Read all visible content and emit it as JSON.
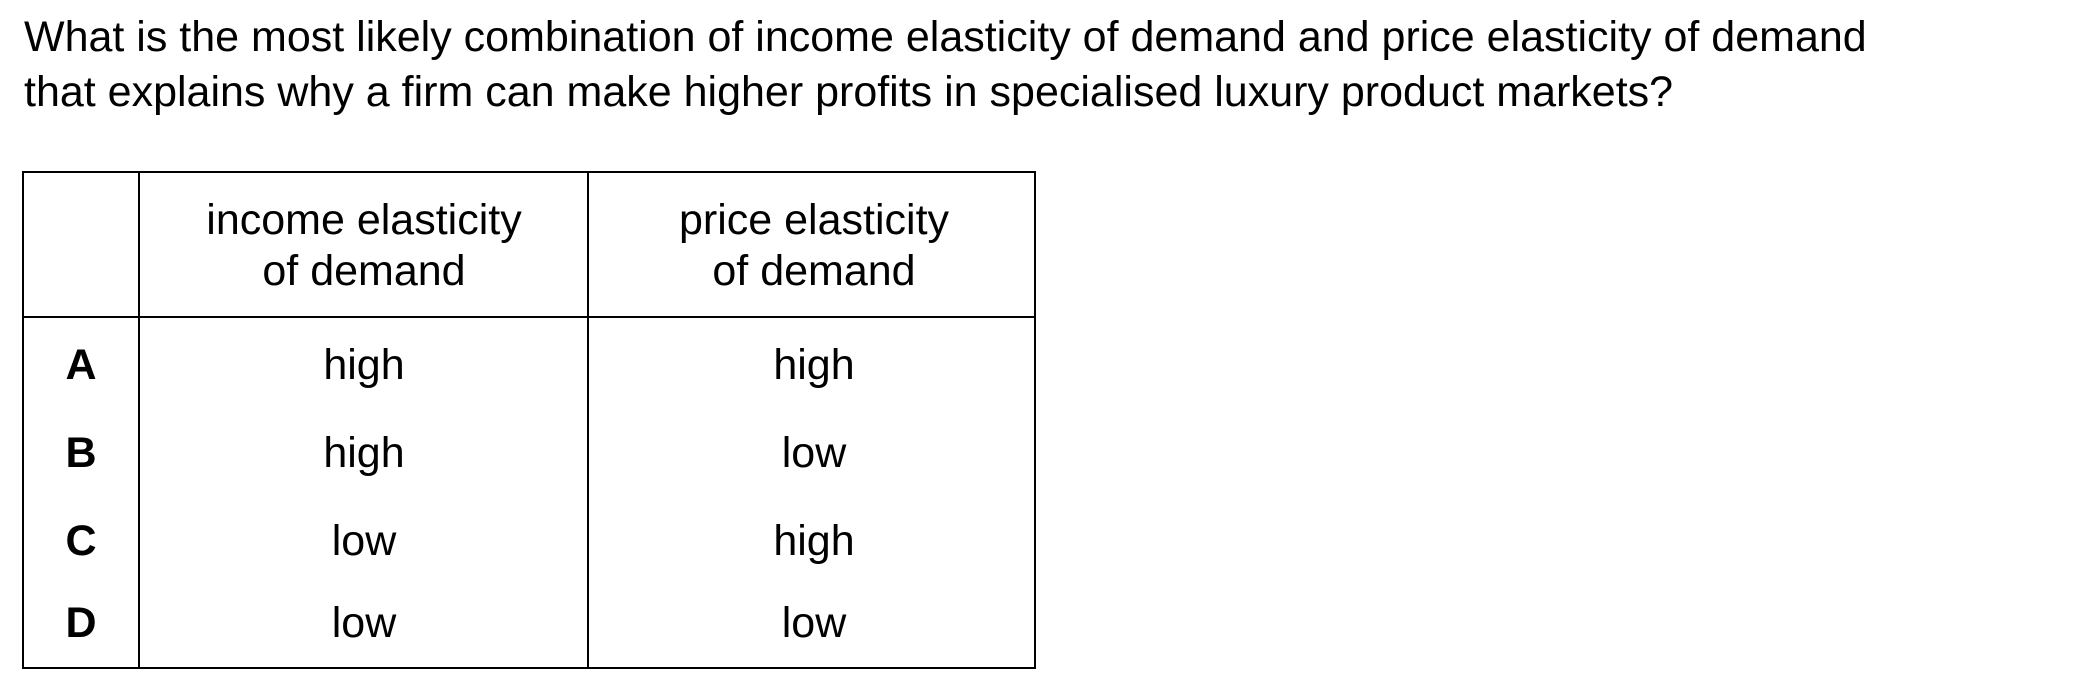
{
  "question": {
    "line1": "What is the most likely combination of income elasticity of demand and price elasticity of demand",
    "line2": "that explains why a firm can make higher profits in specialised luxury product markets?"
  },
  "table": {
    "headers": {
      "income_line1": "income elasticity",
      "income_line2": "of demand",
      "price_line1": "price elasticity",
      "price_line2": "of demand"
    },
    "rows": [
      {
        "option": "A",
        "income": "high",
        "price": "high"
      },
      {
        "option": "B",
        "income": "high",
        "price": "low"
      },
      {
        "option": "C",
        "income": "low",
        "price": "high"
      },
      {
        "option": "D",
        "income": "low",
        "price": "low"
      }
    ]
  }
}
